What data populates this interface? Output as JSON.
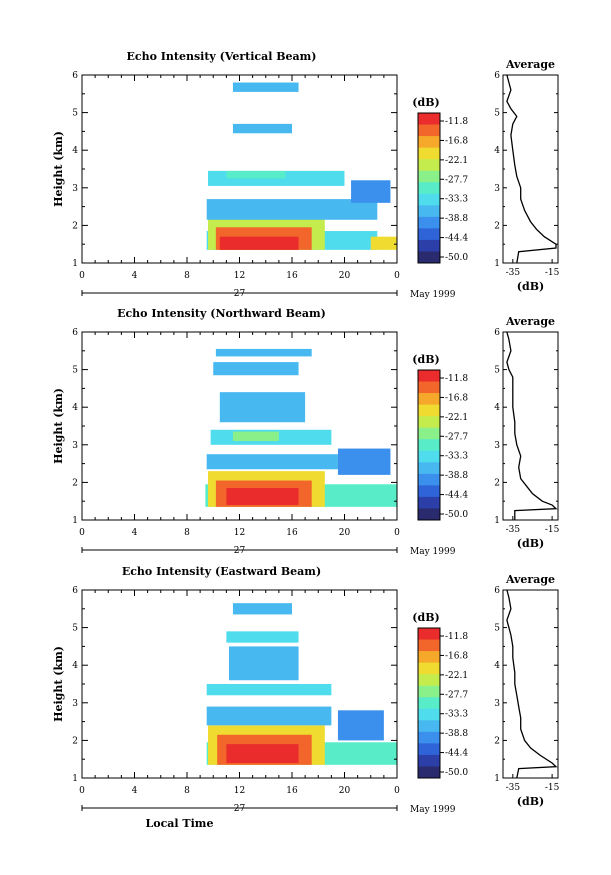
{
  "chart_data": [
    {
      "type": "heatmap",
      "title": "Echo Intensity (Vertical Beam)",
      "ylabel": "Height (km)",
      "xlim": [
        0,
        24
      ],
      "ylim": [
        1,
        6
      ],
      "x_ticks": [
        "0",
        "4",
        "8",
        "12",
        "16",
        "20",
        "0"
      ],
      "y_ticks": [
        "1",
        "2",
        "3",
        "4",
        "5",
        "6"
      ],
      "day_label": "27",
      "date_label": "May 1999",
      "colorbar": {
        "unit": "(dB)",
        "levels": [
          "-11.8",
          "-16.8",
          "-22.1",
          "-27.7",
          "-33.3",
          "-38.8",
          "-44.4",
          "-50.0"
        ]
      },
      "layers": [
        {
          "t0": 9.5,
          "t1": 22.5,
          "b0": 1.35,
          "b1": 1.85,
          "db": -33
        },
        {
          "t0": 9.6,
          "t1": 18.5,
          "b0": 1.35,
          "b1": 2.25,
          "db": -24
        },
        {
          "t0": 10.2,
          "t1": 17.5,
          "b0": 1.35,
          "b1": 1.95,
          "db": -16
        },
        {
          "t0": 10.5,
          "t1": 16.5,
          "b0": 1.35,
          "b1": 1.7,
          "db": -11
        },
        {
          "t0": 22.0,
          "t1": 24.0,
          "b0": 1.35,
          "b1": 1.7,
          "db": -20
        },
        {
          "t0": 9.5,
          "t1": 22.5,
          "b0": 2.15,
          "b1": 2.7,
          "db": -36
        },
        {
          "t0": 9.6,
          "t1": 20.0,
          "b0": 3.05,
          "b1": 3.45,
          "db": -35
        },
        {
          "t0": 11.0,
          "t1": 15.5,
          "b0": 3.25,
          "b1": 3.45,
          "db": -30
        },
        {
          "t0": 11.5,
          "t1": 16.0,
          "b0": 4.45,
          "b1": 4.7,
          "db": -37
        },
        {
          "t0": 11.5,
          "t1": 16.5,
          "b0": 5.55,
          "b1": 5.8,
          "db": -37
        },
        {
          "t0": 20.5,
          "t1": 23.5,
          "b0": 2.6,
          "b1": 3.2,
          "db": -40
        }
      ],
      "average": {
        "title": "Average",
        "xlabel": "(dB)",
        "x_ticks": [
          "-35",
          "-15"
        ],
        "y_ticks": [
          "1",
          "2",
          "3",
          "4",
          "5",
          "6"
        ],
        "xlim": [
          -40,
          -12
        ],
        "height": [
          1.0,
          1.3,
          1.4,
          1.5,
          1.7,
          1.9,
          2.1,
          2.4,
          2.7,
          3.0,
          3.3,
          3.6,
          4.0,
          4.4,
          4.7,
          4.9,
          5.1,
          5.3,
          5.6,
          5.8,
          6.0
        ],
        "db": [
          -33,
          -32,
          -13,
          -13,
          -19,
          -23,
          -26,
          -29,
          -31,
          -31,
          -33,
          -34,
          -35,
          -36,
          -35,
          -33,
          -36,
          -38,
          -36,
          -37,
          -38
        ]
      }
    },
    {
      "type": "heatmap",
      "title": "Echo Intensity (Northward Beam)",
      "ylabel": "Height (km)",
      "xlim": [
        0,
        24
      ],
      "ylim": [
        1,
        6
      ],
      "x_ticks": [
        "0",
        "4",
        "8",
        "12",
        "16",
        "20",
        "0"
      ],
      "y_ticks": [
        "1",
        "2",
        "3",
        "4",
        "5",
        "6"
      ],
      "day_label": "27",
      "date_label": "May 1999",
      "colorbar": {
        "unit": "(dB)",
        "levels": [
          "-11.8",
          "-16.8",
          "-22.1",
          "-27.7",
          "-33.3",
          "-38.8",
          "-44.4",
          "-50.0"
        ]
      },
      "layers": [
        {
          "t0": 9.4,
          "t1": 24.0,
          "b0": 1.35,
          "b1": 1.95,
          "db": -31
        },
        {
          "t0": 9.6,
          "t1": 18.5,
          "b0": 1.35,
          "b1": 2.3,
          "db": -22
        },
        {
          "t0": 10.2,
          "t1": 17.5,
          "b0": 1.35,
          "b1": 2.05,
          "db": -16
        },
        {
          "t0": 11.0,
          "t1": 16.5,
          "b0": 1.4,
          "b1": 1.85,
          "db": -11
        },
        {
          "t0": 9.5,
          "t1": 19.5,
          "b0": 2.35,
          "b1": 2.75,
          "db": -36
        },
        {
          "t0": 9.8,
          "t1": 19.0,
          "b0": 3.0,
          "b1": 3.4,
          "db": -35
        },
        {
          "t0": 11.5,
          "t1": 15.0,
          "b0": 3.1,
          "b1": 3.35,
          "db": -29
        },
        {
          "t0": 10.5,
          "t1": 17.0,
          "b0": 3.6,
          "b1": 4.4,
          "db": -38
        },
        {
          "t0": 10.0,
          "t1": 16.5,
          "b0": 4.85,
          "b1": 5.2,
          "db": -37
        },
        {
          "t0": 10.2,
          "t1": 17.5,
          "b0": 5.35,
          "b1": 5.55,
          "db": -37
        },
        {
          "t0": 19.5,
          "t1": 23.5,
          "b0": 2.2,
          "b1": 2.9,
          "db": -40
        }
      ],
      "average": {
        "title": "Average",
        "xlabel": "(dB)",
        "x_ticks": [
          "-35",
          "-15"
        ],
        "y_ticks": [
          "1",
          "2",
          "3",
          "4",
          "5",
          "6"
        ],
        "xlim": [
          -40,
          -12
        ],
        "height": [
          1.0,
          1.25,
          1.3,
          1.4,
          1.5,
          1.7,
          1.9,
          2.1,
          2.4,
          2.7,
          3.0,
          3.3,
          3.6,
          4.0,
          4.4,
          4.8,
          5.0,
          5.2,
          5.5,
          5.8,
          6.0
        ],
        "db": [
          -34,
          -34,
          -13,
          -15,
          -20,
          -25,
          -28,
          -31,
          -32,
          -31,
          -33,
          -34,
          -34,
          -35,
          -35,
          -35,
          -37,
          -38,
          -36,
          -37,
          -38
        ]
      }
    },
    {
      "type": "heatmap",
      "title": "Echo Intensity (Eastward Beam)",
      "ylabel": "Height (km)",
      "xlabel": "Local Time",
      "xlim": [
        0,
        24
      ],
      "ylim": [
        1,
        6
      ],
      "x_ticks": [
        "0",
        "4",
        "8",
        "12",
        "16",
        "20",
        "0"
      ],
      "y_ticks": [
        "1",
        "2",
        "3",
        "4",
        "5",
        "6"
      ],
      "day_label": "27",
      "date_label": "May 1999",
      "colorbar": {
        "unit": "(dB)",
        "levels": [
          "-11.8",
          "-16.8",
          "-22.1",
          "-27.7",
          "-33.3",
          "-38.8",
          "-44.4",
          "-50.0"
        ]
      },
      "layers": [
        {
          "t0": 9.5,
          "t1": 24.0,
          "b0": 1.35,
          "b1": 1.95,
          "db": -31
        },
        {
          "t0": 9.6,
          "t1": 18.5,
          "b0": 1.35,
          "b1": 2.4,
          "db": -22
        },
        {
          "t0": 10.3,
          "t1": 17.5,
          "b0": 1.35,
          "b1": 2.15,
          "db": -16
        },
        {
          "t0": 11.0,
          "t1": 16.5,
          "b0": 1.4,
          "b1": 1.9,
          "db": -11
        },
        {
          "t0": 9.5,
          "t1": 19.0,
          "b0": 2.4,
          "b1": 2.9,
          "db": -37
        },
        {
          "t0": 9.5,
          "t1": 19.0,
          "b0": 3.2,
          "b1": 3.5,
          "db": -34
        },
        {
          "t0": 11.2,
          "t1": 16.5,
          "b0": 3.6,
          "b1": 4.5,
          "db": -37
        },
        {
          "t0": 11.0,
          "t1": 16.5,
          "b0": 4.6,
          "b1": 4.9,
          "db": -34
        },
        {
          "t0": 11.5,
          "t1": 16.0,
          "b0": 5.35,
          "b1": 5.65,
          "db": -36
        },
        {
          "t0": 19.5,
          "t1": 23.0,
          "b0": 2.0,
          "b1": 2.8,
          "db": -40
        }
      ],
      "average": {
        "title": "Average",
        "xlabel": "(dB)",
        "x_ticks": [
          "-35",
          "-15"
        ],
        "y_ticks": [
          "1",
          "2",
          "3",
          "4",
          "5",
          "6"
        ],
        "xlim": [
          -40,
          -12
        ],
        "height": [
          1.0,
          1.25,
          1.3,
          1.4,
          1.6,
          1.8,
          2.0,
          2.3,
          2.6,
          2.9,
          3.2,
          3.5,
          3.8,
          4.2,
          4.5,
          4.8,
          5.0,
          5.2,
          5.5,
          5.8,
          6.0
        ],
        "db": [
          -33,
          -32,
          -13,
          -15,
          -21,
          -26,
          -29,
          -31,
          -31,
          -32,
          -33,
          -34,
          -34,
          -35,
          -35,
          -36,
          -37,
          -38,
          -36,
          -37,
          -38
        ]
      }
    }
  ]
}
